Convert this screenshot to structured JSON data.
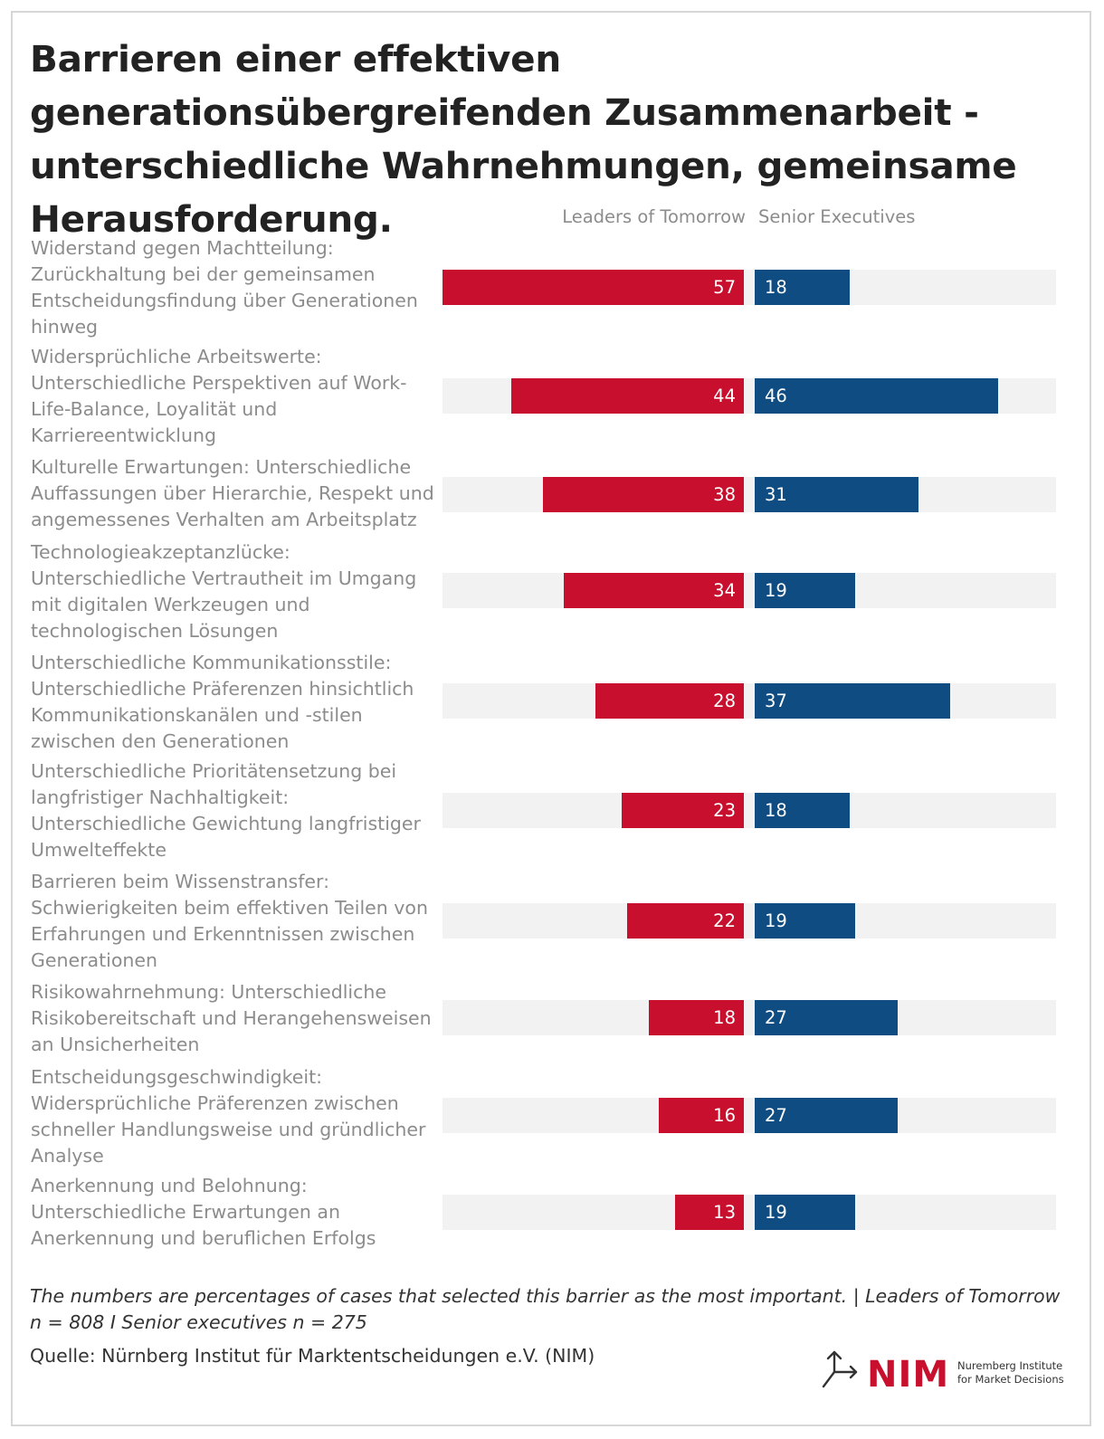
{
  "title": "Barrieren einer effektiven generationsübergreifenden Zusammenarbeit - unterschiedliche Wahrnehmungen, gemeinsame Herausforderung.",
  "note": "The numbers are percentages of cases that selected this barrier as the most important. | Leaders of Tomorrow n = 808 I Senior executives n = 275",
  "source": "Quelle: Nürnberg Institut für Marktentscheidungen e.V. (NIM)",
  "logo": {
    "name": "NIM",
    "line1": "Nuremberg Institute",
    "line2": "for Market Decisions"
  },
  "colors": {
    "leaders": "#c8102e",
    "seniors": "#0f4c81",
    "track": "#f2f2f2"
  },
  "chart_data": {
    "type": "bar",
    "orientation": "horizontal-diverging",
    "title": "Barrieren einer effektiven generationsübergreifenden Zusammenarbeit - unterschiedliche Wahrnehmungen, gemeinsame Herausforderung.",
    "unit": "%",
    "xlim": [
      0,
      60
    ],
    "categories": [
      "Widerstand gegen Machtteilung: Zurückhaltung bei der gemeinsamen Entscheidungsfindung über Generationen hinweg",
      "Widersprüchliche Arbeitswerte: Unterschiedliche Perspektiven auf Work-Life-Balance, Loyalität und Karriereentwicklung",
      "Kulturelle Erwartungen: Unterschiedliche Auffassungen über Hierarchie, Respekt und angemessenes Verhalten am Arbeitsplatz",
      "Technologieakzeptanzlücke: Unterschiedliche Vertrautheit im Umgang mit digitalen Werkzeugen und technologischen Lösungen",
      "Unterschiedliche Kommunikationsstile: Unterschiedliche Präferenzen hinsichtlich Kommunikationskanälen und -stilen zwischen den Generationen",
      "Unterschiedliche Prioritätensetzung bei langfristiger Nachhaltigkeit: Unterschiedliche Gewichtung langfristiger Umwelteffekte",
      "Barrieren beim Wissenstransfer: Schwierigkeiten beim effektiven Teilen von Erfahrungen und Erkenntnissen zwischen Generationen",
      "Risikowahrnehmung: Unterschiedliche Risikobereitschaft und Herangehensweisen an Unsicherheiten",
      "Entscheidungsgeschwindigkeit: Widersprüchliche Präferenzen zwischen schneller Handlungsweise und gründlicher Analyse",
      "Anerkennung und Belohnung: Unterschiedliche Erwartungen an Anerkennung und beruflichen Erfolgs"
    ],
    "series": [
      {
        "name": "Leaders of Tomorrow",
        "values": [
          57,
          44,
          38,
          34,
          28,
          23,
          22,
          18,
          16,
          13
        ]
      },
      {
        "name": "Senior Executives",
        "values": [
          18,
          46,
          31,
          19,
          37,
          18,
          19,
          27,
          27,
          19
        ]
      }
    ]
  }
}
